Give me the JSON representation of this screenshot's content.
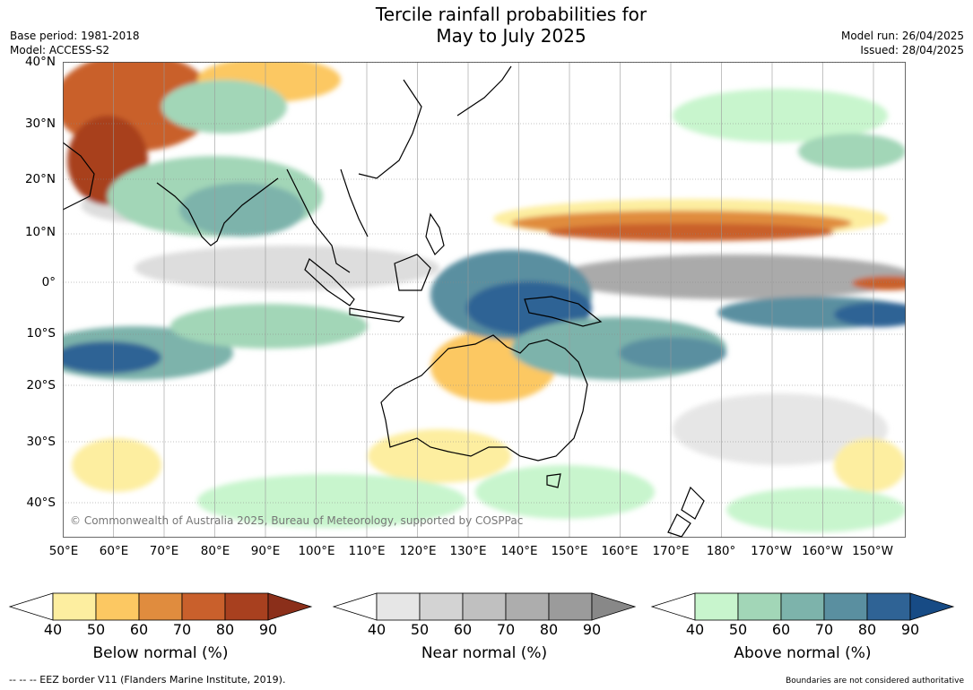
{
  "title": {
    "line1": "Tercile rainfall probabilities for",
    "line2": "May to July 2025"
  },
  "meta_left": {
    "base_period": "Base period: 1981-2018",
    "model": "Model: ACCESS-S2"
  },
  "meta_right": {
    "model_run": "Model run: 26/04/2025",
    "issued": "Issued: 28/04/2025"
  },
  "map": {
    "lat_labels": [
      "40°N",
      "30°N",
      "20°N",
      "10°N",
      "0°",
      "10°S",
      "20°S",
      "30°S",
      "40°S"
    ],
    "lon_labels": [
      "50°E",
      "60°E",
      "70°E",
      "80°E",
      "90°E",
      "100°E",
      "110°E",
      "120°E",
      "130°E",
      "140°E",
      "150°E",
      "160°E",
      "170°E",
      "180°",
      "170°W",
      "160°W",
      "150°W"
    ],
    "copyright": "© Commonwealth of Australia 2025, Bureau of Meteorology, supported by COSPPac"
  },
  "colorbars": [
    {
      "label": "Below normal (%)",
      "ticks": [
        "40",
        "50",
        "60",
        "70",
        "80",
        "90"
      ],
      "colors": [
        "#ffffff",
        "#fdeea0",
        "#fcc862",
        "#e08c3e",
        "#c9602c",
        "#a8401f",
        "#8b2f1a"
      ]
    },
    {
      "label": "Near normal (%)",
      "ticks": [
        "40",
        "50",
        "60",
        "70",
        "80",
        "90"
      ],
      "colors": [
        "#ffffff",
        "#e6e6e6",
        "#d3d3d3",
        "#c0c0c0",
        "#adadad",
        "#9b9b9b",
        "#888888"
      ]
    },
    {
      "label": "Above normal (%)",
      "ticks": [
        "40",
        "50",
        "60",
        "70",
        "80",
        "90"
      ],
      "colors": [
        "#ffffff",
        "#c8f5cd",
        "#a2d6b7",
        "#7db3ab",
        "#5a8fa0",
        "#2f6395",
        "#174b85"
      ]
    }
  ],
  "footer": {
    "left": "--  --  -- EEZ border V11 (Flanders Marine Institute, 2019).",
    "right": "Boundaries are not considered authoritative"
  }
}
